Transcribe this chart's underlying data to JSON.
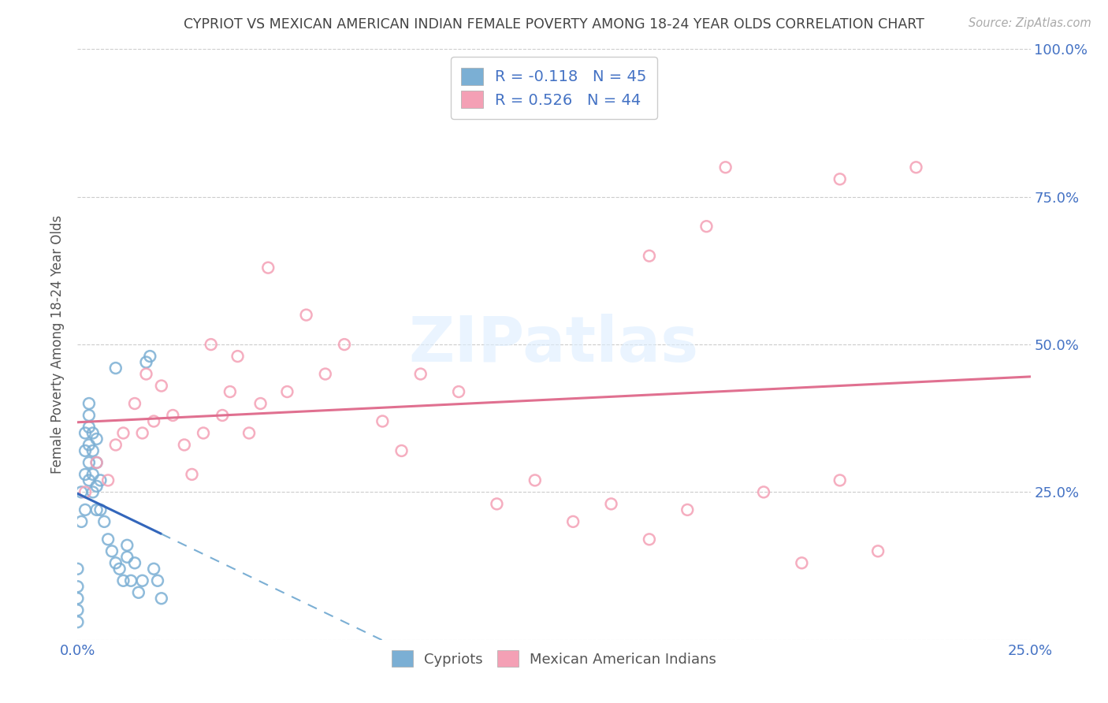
{
  "title": "CYPRIOT VS MEXICAN AMERICAN INDIAN FEMALE POVERTY AMONG 18-24 YEAR OLDS CORRELATION CHART",
  "source": "Source: ZipAtlas.com",
  "ylabel": "Female Poverty Among 18-24 Year Olds",
  "xlim": [
    0.0,
    0.25
  ],
  "ylim": [
    0.0,
    1.0
  ],
  "background_color": "#ffffff",
  "grid_color": "#cccccc",
  "cypriot_color": "#7bafd4",
  "mexican_color": "#f4a0b5",
  "cypriot_line_color": "#3366bb",
  "mexican_line_color": "#e07090",
  "cypriot_R": -0.118,
  "cypriot_N": 45,
  "mexican_R": 0.526,
  "mexican_N": 44,
  "legend_text_color": "#4472c4",
  "title_color": "#444444",
  "axis_label_color": "#4472c4",
  "cypriot_scatter_x": [
    0.0,
    0.0,
    0.0,
    0.0,
    0.0,
    0.001,
    0.001,
    0.002,
    0.002,
    0.002,
    0.002,
    0.003,
    0.003,
    0.003,
    0.003,
    0.003,
    0.003,
    0.004,
    0.004,
    0.004,
    0.004,
    0.005,
    0.005,
    0.005,
    0.005,
    0.006,
    0.006,
    0.007,
    0.008,
    0.009,
    0.01,
    0.01,
    0.011,
    0.012,
    0.013,
    0.013,
    0.014,
    0.015,
    0.016,
    0.017,
    0.018,
    0.019,
    0.02,
    0.021,
    0.022
  ],
  "cypriot_scatter_y": [
    0.03,
    0.05,
    0.07,
    0.09,
    0.12,
    0.2,
    0.25,
    0.22,
    0.28,
    0.32,
    0.35,
    0.27,
    0.3,
    0.33,
    0.36,
    0.38,
    0.4,
    0.25,
    0.28,
    0.32,
    0.35,
    0.22,
    0.26,
    0.3,
    0.34,
    0.22,
    0.27,
    0.2,
    0.17,
    0.15,
    0.13,
    0.46,
    0.12,
    0.1,
    0.14,
    0.16,
    0.1,
    0.13,
    0.08,
    0.1,
    0.47,
    0.48,
    0.12,
    0.1,
    0.07
  ],
  "mexican_scatter_x": [
    0.002,
    0.005,
    0.008,
    0.01,
    0.012,
    0.015,
    0.017,
    0.018,
    0.02,
    0.022,
    0.025,
    0.028,
    0.03,
    0.033,
    0.035,
    0.038,
    0.04,
    0.042,
    0.045,
    0.048,
    0.05,
    0.055,
    0.06,
    0.065,
    0.07,
    0.08,
    0.085,
    0.09,
    0.1,
    0.11,
    0.12,
    0.13,
    0.14,
    0.15,
    0.16,
    0.17,
    0.18,
    0.19,
    0.2,
    0.21,
    0.15,
    0.165,
    0.2,
    0.22
  ],
  "mexican_scatter_y": [
    0.25,
    0.3,
    0.27,
    0.33,
    0.35,
    0.4,
    0.35,
    0.45,
    0.37,
    0.43,
    0.38,
    0.33,
    0.28,
    0.35,
    0.5,
    0.38,
    0.42,
    0.48,
    0.35,
    0.4,
    0.63,
    0.42,
    0.55,
    0.45,
    0.5,
    0.37,
    0.32,
    0.45,
    0.42,
    0.23,
    0.27,
    0.2,
    0.23,
    0.17,
    0.22,
    0.8,
    0.25,
    0.13,
    0.27,
    0.15,
    0.65,
    0.7,
    0.78,
    0.8
  ],
  "cypriot_line_x": [
    0.0,
    0.1
  ],
  "cypriot_line_solid_end": 0.022,
  "mexican_line_x": [
    0.0,
    0.25
  ]
}
